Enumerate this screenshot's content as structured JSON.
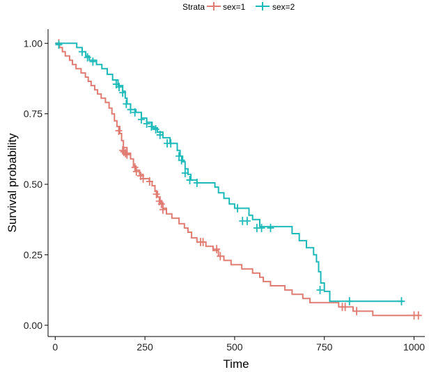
{
  "chart_data": {
    "type": "line",
    "subtype": "kaplan-meier-step",
    "xlabel": "Time",
    "ylabel": "Survival probability",
    "xlim": [
      -20,
      1030
    ],
    "ylim": [
      -0.04,
      1.05
    ],
    "x_ticks": [
      0,
      250,
      500,
      750,
      1000
    ],
    "x_tick_labels": [
      "0",
      "250",
      "500",
      "750",
      "1000"
    ],
    "y_ticks": [
      0,
      0.25,
      0.5,
      0.75,
      1.0
    ],
    "y_tick_labels": [
      "0.00",
      "0.25",
      "0.50",
      "0.75",
      "1.00"
    ],
    "grid": false,
    "legend": {
      "title": "Strata",
      "placement": "top",
      "entries": [
        "sex=1",
        "sex=2"
      ]
    },
    "series": [
      {
        "name": "sex=1",
        "color": "#E07B72",
        "steps": [
          [
            0,
            1.0
          ],
          [
            12,
            0.985
          ],
          [
            20,
            0.97
          ],
          [
            28,
            0.955
          ],
          [
            40,
            0.94
          ],
          [
            48,
            0.925
          ],
          [
            58,
            0.91
          ],
          [
            72,
            0.895
          ],
          [
            84,
            0.88
          ],
          [
            92,
            0.865
          ],
          [
            100,
            0.85
          ],
          [
            110,
            0.835
          ],
          [
            118,
            0.82
          ],
          [
            128,
            0.805
          ],
          [
            140,
            0.79
          ],
          [
            150,
            0.77
          ],
          [
            158,
            0.75
          ],
          [
            165,
            0.725
          ],
          [
            172,
            0.705
          ],
          [
            180,
            0.68
          ],
          [
            185,
            0.655
          ],
          [
            190,
            0.63
          ],
          [
            200,
            0.61
          ],
          [
            210,
            0.59
          ],
          [
            218,
            0.565
          ],
          [
            225,
            0.55
          ],
          [
            235,
            0.535
          ],
          [
            245,
            0.52
          ],
          [
            262,
            0.51
          ],
          [
            270,
            0.495
          ],
          [
            278,
            0.475
          ],
          [
            285,
            0.455
          ],
          [
            292,
            0.435
          ],
          [
            300,
            0.415
          ],
          [
            310,
            0.395
          ],
          [
            325,
            0.38
          ],
          [
            345,
            0.36
          ],
          [
            360,
            0.345
          ],
          [
            370,
            0.33
          ],
          [
            380,
            0.31
          ],
          [
            395,
            0.295
          ],
          [
            420,
            0.28
          ],
          [
            440,
            0.265
          ],
          [
            455,
            0.245
          ],
          [
            470,
            0.23
          ],
          [
            490,
            0.215
          ],
          [
            520,
            0.2
          ],
          [
            550,
            0.185
          ],
          [
            570,
            0.17
          ],
          [
            580,
            0.155
          ],
          [
            600,
            0.14
          ],
          [
            640,
            0.125
          ],
          [
            660,
            0.11
          ],
          [
            690,
            0.095
          ],
          [
            710,
            0.08
          ],
          [
            790,
            0.065
          ],
          [
            830,
            0.05
          ],
          [
            885,
            0.035
          ],
          [
            1010,
            0.035
          ]
        ],
        "censors": [
          [
            10,
            1.0
          ],
          [
            177,
            0.69
          ],
          [
            188,
            0.62
          ],
          [
            191,
            0.615
          ],
          [
            196,
            0.61
          ],
          [
            200,
            0.605
          ],
          [
            222,
            0.56
          ],
          [
            226,
            0.545
          ],
          [
            238,
            0.53
          ],
          [
            245,
            0.52
          ],
          [
            263,
            0.51
          ],
          [
            282,
            0.465
          ],
          [
            290,
            0.44
          ],
          [
            296,
            0.43
          ],
          [
            300,
            0.41
          ],
          [
            405,
            0.295
          ],
          [
            412,
            0.295
          ],
          [
            450,
            0.27
          ],
          [
            460,
            0.245
          ],
          [
            800,
            0.065
          ],
          [
            808,
            0.065
          ],
          [
            840,
            0.05
          ],
          [
            1000,
            0.035
          ],
          [
            1012,
            0.035
          ]
        ]
      },
      {
        "name": "sex=2",
        "color": "#1CB9B9",
        "steps": [
          [
            0,
            1.0
          ],
          [
            60,
            0.985
          ],
          [
            75,
            0.97
          ],
          [
            85,
            0.955
          ],
          [
            95,
            0.94
          ],
          [
            115,
            0.925
          ],
          [
            130,
            0.91
          ],
          [
            145,
            0.89
          ],
          [
            160,
            0.87
          ],
          [
            175,
            0.85
          ],
          [
            188,
            0.83
          ],
          [
            195,
            0.805
          ],
          [
            200,
            0.785
          ],
          [
            210,
            0.765
          ],
          [
            225,
            0.755
          ],
          [
            240,
            0.735
          ],
          [
            255,
            0.72
          ],
          [
            270,
            0.7
          ],
          [
            285,
            0.685
          ],
          [
            300,
            0.665
          ],
          [
            320,
            0.645
          ],
          [
            340,
            0.62
          ],
          [
            348,
            0.6
          ],
          [
            355,
            0.58
          ],
          [
            362,
            0.555
          ],
          [
            370,
            0.535
          ],
          [
            378,
            0.515
          ],
          [
            395,
            0.505
          ],
          [
            445,
            0.49
          ],
          [
            455,
            0.47
          ],
          [
            470,
            0.45
          ],
          [
            485,
            0.43
          ],
          [
            500,
            0.415
          ],
          [
            540,
            0.39
          ],
          [
            550,
            0.375
          ],
          [
            570,
            0.35
          ],
          [
            660,
            0.325
          ],
          [
            680,
            0.3
          ],
          [
            700,
            0.275
          ],
          [
            720,
            0.25
          ],
          [
            728,
            0.225
          ],
          [
            734,
            0.19
          ],
          [
            740,
            0.15
          ],
          [
            750,
            0.12
          ],
          [
            765,
            0.085
          ],
          [
            970,
            0.085
          ]
        ],
        "censors": [
          [
            10,
            0.995
          ],
          [
            75,
            0.97
          ],
          [
            90,
            0.95
          ],
          [
            105,
            0.935
          ],
          [
            170,
            0.855
          ],
          [
            178,
            0.845
          ],
          [
            188,
            0.825
          ],
          [
            198,
            0.785
          ],
          [
            210,
            0.765
          ],
          [
            222,
            0.755
          ],
          [
            240,
            0.73
          ],
          [
            255,
            0.715
          ],
          [
            268,
            0.705
          ],
          [
            280,
            0.695
          ],
          [
            292,
            0.675
          ],
          [
            312,
            0.645
          ],
          [
            322,
            0.645
          ],
          [
            345,
            0.6
          ],
          [
            352,
            0.585
          ],
          [
            362,
            0.54
          ],
          [
            375,
            0.515
          ],
          [
            395,
            0.505
          ],
          [
            508,
            0.415
          ],
          [
            522,
            0.37
          ],
          [
            535,
            0.37
          ],
          [
            562,
            0.345
          ],
          [
            575,
            0.345
          ],
          [
            600,
            0.345
          ],
          [
            738,
            0.125
          ],
          [
            820,
            0.085
          ],
          [
            965,
            0.085
          ]
        ]
      }
    ]
  }
}
